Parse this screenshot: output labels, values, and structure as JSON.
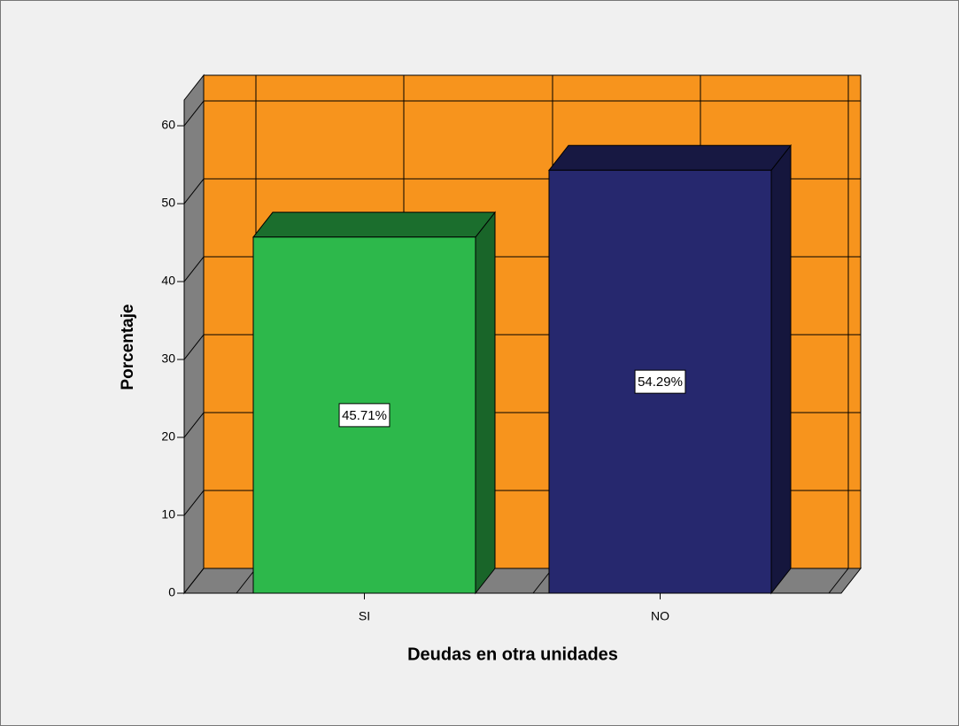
{
  "chart_data": {
    "type": "bar3d",
    "x_label": "Deudas en otra unidades",
    "y_label": "Porcentaje",
    "categories": [
      "SI",
      "NO"
    ],
    "values": [
      45.71,
      54.29
    ],
    "value_labels": [
      "45.71%",
      "54.29%"
    ],
    "colors": [
      "#2db84b",
      "#26286e"
    ],
    "ylim": [
      0,
      63.3
    ],
    "yticks": [
      0,
      10,
      20,
      30,
      40,
      50,
      60
    ],
    "grid": true
  }
}
